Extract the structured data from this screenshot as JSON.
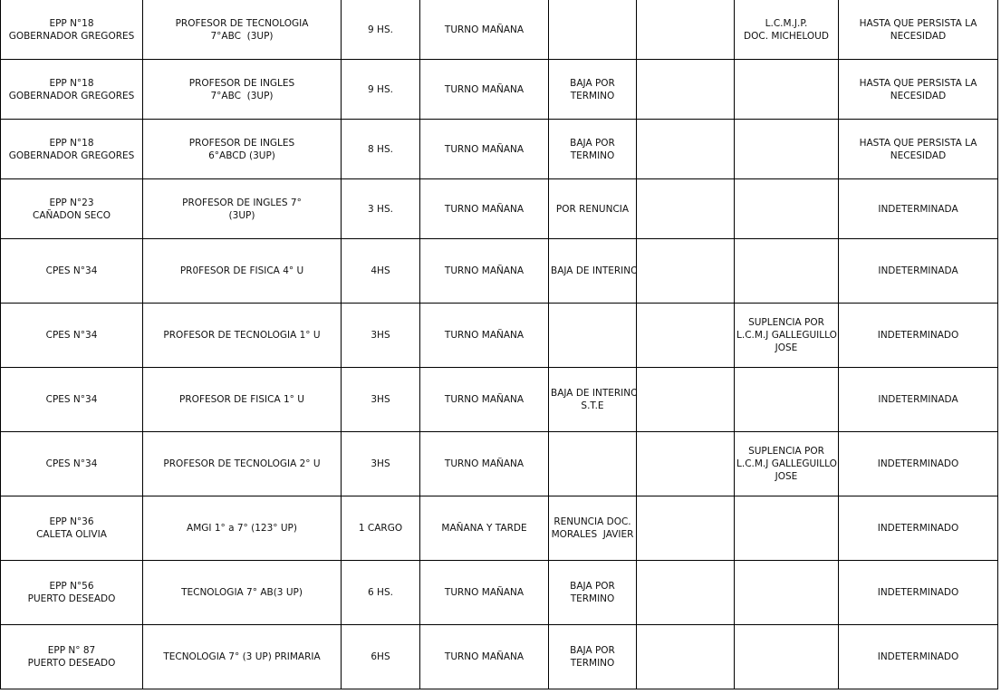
{
  "table": {
    "rows": [
      [
        [
          "EPP N°18",
          "GOBERNADOR GREGORES"
        ],
        [
          "PROFESOR DE TECNOLOGIA",
          "7°ABC  (3UP)"
        ],
        [
          "9 HS."
        ],
        [
          "TURNO MAÑANA"
        ],
        [],
        [],
        [
          "L.C.M.J.P.",
          "DOC. MICHELOUD"
        ],
        [
          "HASTA QUE PERSISTA LA",
          "NECESIDAD"
        ]
      ],
      [
        [
          "EPP N°18",
          "GOBERNADOR GREGORES"
        ],
        [
          "PROFESOR DE INGLES",
          "7°ABC  (3UP)"
        ],
        [
          "9 HS."
        ],
        [
          "TURNO MAÑANA"
        ],
        [
          "BAJA POR",
          "TERMINO"
        ],
        [],
        [],
        [
          "HASTA QUE PERSISTA LA",
          "NECESIDAD"
        ]
      ],
      [
        [
          "EPP N°18",
          "GOBERNADOR GREGORES"
        ],
        [
          "PROFESOR DE INGLES",
          "6°ABCD (3UP)"
        ],
        [
          "8 HS."
        ],
        [
          "TURNO MAÑANA"
        ],
        [
          "BAJA POR",
          "TERMINO"
        ],
        [],
        [],
        [
          "HASTA QUE PERSISTA LA",
          "NECESIDAD"
        ]
      ],
      [
        [
          "EPP N°23",
          "CAÑADON SECO"
        ],
        [
          "PROFESOR DE INGLES 7°",
          "(3UP)"
        ],
        [
          "3 HS."
        ],
        [
          "TURNO MAÑANA"
        ],
        [
          "POR RENUNCIA"
        ],
        [],
        [],
        [
          "INDETERMINADA"
        ]
      ],
      [
        [
          "CPES N°34"
        ],
        [
          "PR0FESOR DE FISICA 4° U"
        ],
        [
          "4HS"
        ],
        [
          "TURNO MAÑANA"
        ],
        [
          "BAJA DE INTERINO"
        ],
        [],
        [],
        [
          "INDETERMINADA"
        ]
      ],
      [
        [
          "CPES N°34"
        ],
        [
          "PROFESOR DE TECNOLOGIA 1° U"
        ],
        [
          "3HS"
        ],
        [
          "TURNO MAÑANA"
        ],
        [],
        [],
        [
          "SUPLENCIA POR",
          "L.C.M.J GALLEGUILLO",
          "JOSE"
        ],
        [
          "INDETERMINADO"
        ]
      ],
      [
        [
          "CPES N°34"
        ],
        [
          "PROFESOR DE FISICA 1° U"
        ],
        [
          "3HS"
        ],
        [
          "TURNO MAÑANA"
        ],
        [
          "BAJA DE INTERINO",
          "S.T.E"
        ],
        [],
        [],
        [
          "INDETERMINADA"
        ]
      ],
      [
        [
          "CPES N°34"
        ],
        [
          "PROFESOR DE TECNOLOGIA 2° U"
        ],
        [
          "3HS"
        ],
        [
          "TURNO MAÑANA"
        ],
        [],
        [],
        [
          "SUPLENCIA POR",
          "L.C.M.J GALLEGUILLO",
          "JOSE"
        ],
        [
          "INDETERMINADO"
        ]
      ],
      [
        [
          "EPP N°36",
          "CALETA OLIVIA"
        ],
        [
          "AMGI 1° a 7° (123° UP)"
        ],
        [
          "1 CARGO"
        ],
        [
          "MAÑANA Y TARDE"
        ],
        [
          "RENUNCIA DOC.",
          "MORALES  JAVIER"
        ],
        [],
        [],
        [
          "INDETERMINADO"
        ]
      ],
      [
        [
          "EPP N°56",
          "PUERTO DESEADO"
        ],
        [
          "TECNOLOGIA 7° AB(3 UP)"
        ],
        [
          "6 HS."
        ],
        [
          "TURNO MAÑANA"
        ],
        [
          "BAJA POR",
          "TERMINO"
        ],
        [],
        [],
        [
          "INDETERMINADO"
        ]
      ],
      [
        [
          "EPP N° 87",
          "PUERTO DESEADO"
        ],
        [
          "TECNOLOGIA 7° (3 UP) PRIMARIA"
        ],
        [
          "6HS"
        ],
        [
          "TURNO MAÑANA"
        ],
        [
          "BAJA POR",
          "TERMINO"
        ],
        [],
        [],
        [
          "INDETERMINADO"
        ]
      ]
    ]
  }
}
